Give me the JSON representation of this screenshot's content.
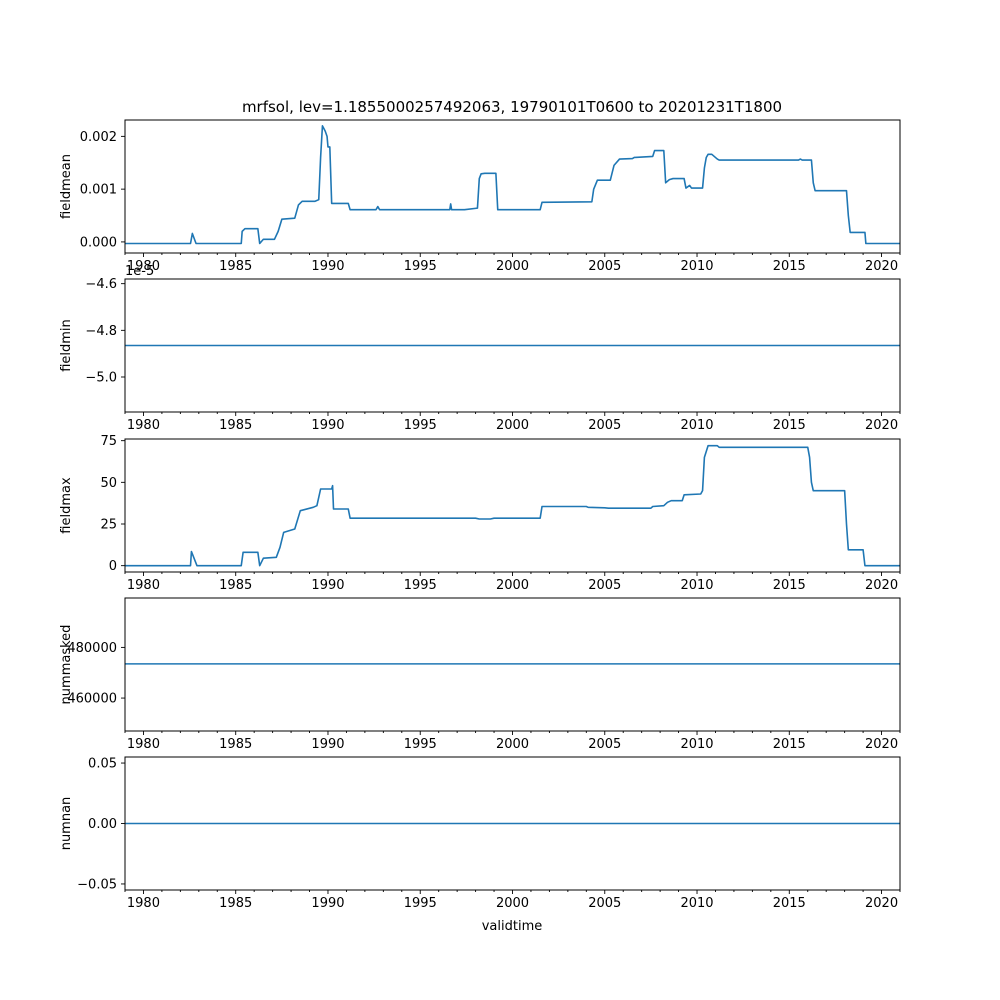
{
  "figure": {
    "title": "mrfsol, lev=1.1855000257492063, 19790101T0600 to 20201231T1800",
    "xlabel": "validtime",
    "series_color": "#1f77b4"
  },
  "chart_data": [
    {
      "type": "line",
      "ylabel": "fieldmean",
      "xlim": [
        1979.0,
        2021.0
      ],
      "ylim": [
        -0.00021,
        0.00231
      ],
      "xticks": [
        "1980",
        "1985",
        "1990",
        "1995",
        "2000",
        "2005",
        "2010",
        "2015",
        "2020"
      ],
      "yticks": [
        "0.000",
        "0.001",
        "0.002"
      ],
      "ytick_values": [
        0,
        0.001,
        0.002
      ],
      "x": [
        1979.0,
        1982.55,
        1982.65,
        1982.85,
        1985.3,
        1985.35,
        1985.5,
        1986.2,
        1986.3,
        1986.5,
        1987.1,
        1987.3,
        1987.5,
        1988.2,
        1988.4,
        1988.6,
        1989.3,
        1989.5,
        1989.6,
        1989.7,
        1989.85,
        1989.95,
        1990.0,
        1990.1,
        1990.2,
        1991.1,
        1991.2,
        1992.6,
        1992.7,
        1992.8,
        1993.6,
        1993.7,
        1996.6,
        1996.65,
        1996.7,
        1997.4,
        1998.1,
        1998.2,
        1998.3,
        1998.5,
        1999.1,
        1999.2,
        2001.5,
        2001.6,
        2004.3,
        2004.4,
        2004.6,
        2005.3,
        2005.5,
        2005.8,
        2006.5,
        2006.6,
        2007.6,
        2007.7,
        2008.2,
        2008.3,
        2008.5,
        2008.7,
        2009.3,
        2009.4,
        2009.6,
        2009.7,
        2010.3,
        2010.4,
        2010.5,
        2010.6,
        2010.8,
        2011.1,
        2011.2,
        2015.5,
        2015.6,
        2015.7,
        2016.2,
        2016.3,
        2016.4,
        2018.1,
        2018.2,
        2018.3,
        2019.1,
        2019.15,
        2021.0
      ],
      "y": [
        -3e-05,
        -3e-05,
        0.00016,
        -3e-05,
        -3e-05,
        0.0002,
        0.00025,
        0.00025,
        -3e-05,
        5e-05,
        5e-05,
        0.0002,
        0.00043,
        0.00045,
        0.0007,
        0.00077,
        0.00077,
        0.0008,
        0.0016,
        0.0022,
        0.0021,
        0.002,
        0.0018,
        0.0018,
        0.00073,
        0.00073,
        0.00061,
        0.00061,
        0.00067,
        0.00061,
        0.00061,
        0.00061,
        0.00061,
        0.00072,
        0.00061,
        0.00061,
        0.00064,
        0.0012,
        0.00129,
        0.0013,
        0.0013,
        0.00061,
        0.00061,
        0.00075,
        0.00076,
        0.001,
        0.00117,
        0.00117,
        0.00145,
        0.00157,
        0.00158,
        0.0016,
        0.00162,
        0.00173,
        0.00173,
        0.00112,
        0.00118,
        0.0012,
        0.0012,
        0.00102,
        0.00107,
        0.00102,
        0.00102,
        0.0014,
        0.0016,
        0.00166,
        0.00166,
        0.00157,
        0.00155,
        0.00155,
        0.00157,
        0.00155,
        0.00155,
        0.00112,
        0.00097,
        0.00097,
        0.0005,
        0.00018,
        0.00018,
        -3e-05,
        -3e-05
      ]
    },
    {
      "type": "line",
      "ylabel": "fieldmin",
      "offset_label": "1e-5",
      "xlim": [
        1979.0,
        2021.0
      ],
      "ylim": [
        -5.15,
        -4.58
      ],
      "xticks": [
        "1980",
        "1985",
        "1990",
        "1995",
        "2000",
        "2005",
        "2010",
        "2015",
        "2020"
      ],
      "yticks": [
        "−4.6",
        "−4.8",
        "−5.0"
      ],
      "ytick_values": [
        -4.6,
        -4.8,
        -5.0
      ],
      "x": [
        1979.0,
        2021.0
      ],
      "y": [
        -4.865,
        -4.865
      ]
    },
    {
      "type": "line",
      "ylabel": "fieldmax",
      "xlim": [
        1979.0,
        2021.0
      ],
      "ylim": [
        -3.8,
        76.0
      ],
      "xticks": [
        "1980",
        "1985",
        "1990",
        "1995",
        "2000",
        "2005",
        "2010",
        "2015",
        "2020"
      ],
      "yticks": [
        "0",
        "25",
        "50",
        "75"
      ],
      "ytick_values": [
        0,
        25,
        50,
        75
      ],
      "x": [
        1979.0,
        1982.55,
        1982.6,
        1982.9,
        1985.3,
        1985.4,
        1986.2,
        1986.3,
        1986.5,
        1987.2,
        1987.4,
        1987.6,
        1988.2,
        1988.5,
        1989.2,
        1989.4,
        1989.6,
        1990.2,
        1990.25,
        1990.3,
        1991.1,
        1991.2,
        1998.0,
        1998.2,
        1998.8,
        1999.0,
        2001.5,
        2001.6,
        2004.0,
        2004.1,
        2005.0,
        2005.2,
        2007.5,
        2007.6,
        2008.2,
        2008.4,
        2008.6,
        2009.2,
        2009.3,
        2010.2,
        2010.3,
        2010.4,
        2010.6,
        2011.1,
        2011.2,
        2016.0,
        2016.1,
        2016.2,
        2016.3,
        2018.0,
        2018.1,
        2018.2,
        2019.0,
        2019.1,
        2021.0
      ],
      "y": [
        0,
        0,
        8.5,
        0,
        0,
        8,
        8,
        0,
        4.5,
        5,
        11,
        20,
        22,
        33,
        35,
        36,
        46,
        46,
        48,
        34,
        34,
        28.5,
        28.5,
        28,
        28,
        28.5,
        28.5,
        35.5,
        35.5,
        35,
        34.7,
        34.5,
        34.5,
        35.5,
        36,
        38,
        39,
        39,
        42.5,
        43,
        45,
        65,
        72,
        72,
        71,
        71,
        65,
        50,
        45,
        45,
        25,
        9.5,
        9.5,
        0,
        0
      ]
    },
    {
      "type": "line",
      "ylabel": "nummasked",
      "xlim": [
        1979.0,
        2021.0
      ],
      "ylim": [
        447000,
        499500
      ],
      "xticks": [
        "1980",
        "1985",
        "1990",
        "1995",
        "2000",
        "2005",
        "2010",
        "2015",
        "2020"
      ],
      "yticks": [
        "460000",
        "480000"
      ],
      "ytick_values": [
        460000,
        480000
      ],
      "x": [
        1979.0,
        2021.0
      ],
      "y": [
        473500,
        473500
      ]
    },
    {
      "type": "line",
      "ylabel": "numnan",
      "xlim": [
        1979.0,
        2021.0
      ],
      "ylim": [
        -0.055,
        0.055
      ],
      "xticks": [
        "1980",
        "1985",
        "1990",
        "1995",
        "2000",
        "2005",
        "2010",
        "2015",
        "2020"
      ],
      "yticks": [
        "0.05",
        "0.00",
        "−0.05"
      ],
      "ytick_values": [
        0.05,
        0.0,
        -0.05
      ],
      "x": [
        1979.0,
        2021.0
      ],
      "y": [
        0,
        0
      ]
    }
  ]
}
